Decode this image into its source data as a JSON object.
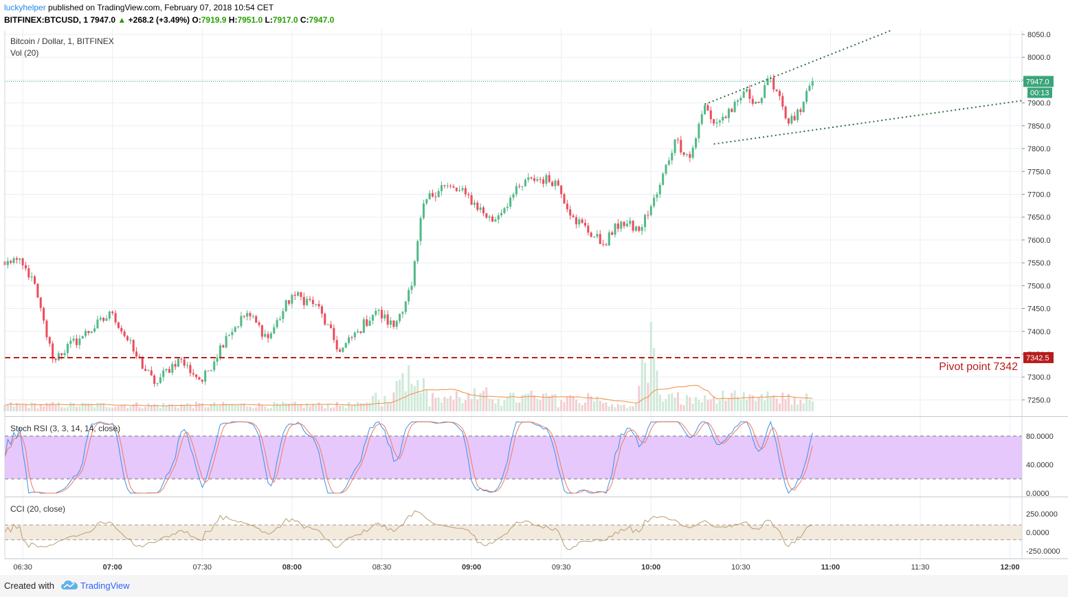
{
  "header": {
    "author": "luckyhelper",
    "published_text": "published on TradingView.com, February 07, 2018 10:54 CET",
    "symbol": "BITFINEX:BTCUSD, 1",
    "last": "7947.0",
    "change": "+268.2 (+3.49%)",
    "o_label": "O:",
    "o_value": "7919.9",
    "h_label": "H:",
    "h_value": "7951.0",
    "l_label": "L:",
    "l_value": "7917.0",
    "c_label": "C:",
    "c_value": "7947.0"
  },
  "footer": {
    "created_with": "Created with",
    "brand": "TradingView"
  },
  "colors": {
    "up": "#53b987",
    "down": "#eb4d5c",
    "grid": "#e9eef2",
    "pivot": "#b71c1c",
    "stoch_band": "#e6c8fc",
    "cci_band": "#f3eade",
    "stoch_k": "#3b8fe8",
    "stoch_d": "#f07a5a",
    "cci_line": "#b89c6e",
    "vol_ma": "#f08c3c"
  },
  "chart_data": [
    {
      "type": "candlestick",
      "title": "Bitcoin / Dollar, 1, BITFINEX",
      "subtitle": "Vol (20)",
      "x_ticks": [
        "06:30",
        "07:00",
        "07:30",
        "08:00",
        "08:30",
        "09:00",
        "09:30",
        "10:00",
        "10:30",
        "11:00",
        "11:30",
        "12:00"
      ],
      "y_ticks": [
        "8050.0",
        "8000.0",
        "7950.0",
        "7900.0",
        "7850.0",
        "7800.0",
        "7750.0",
        "7700.0",
        "7650.0",
        "7600.0",
        "7550.0",
        "7500.0",
        "7450.0",
        "7400.0",
        "7350.0",
        "7300.0",
        "7250.0"
      ],
      "ylim": [
        7215,
        8058
      ],
      "xlim_minutes_from_0624": [
        0,
        340
      ],
      "last_price_label": "7947.0",
      "countdown_label": "00:13",
      "pivot": {
        "value": 7342.5,
        "label": "7342.5",
        "annotation": "Pivot point 7342"
      },
      "key_closes": [
        {
          "time": "06:24",
          "close": 7545
        },
        {
          "time": "06:27",
          "close": 7560
        },
        {
          "time": "06:33",
          "close": 7520
        },
        {
          "time": "06:40",
          "close": 7340
        },
        {
          "time": "06:50",
          "close": 7390
        },
        {
          "time": "07:00",
          "close": 7440
        },
        {
          "time": "07:08",
          "close": 7345
        },
        {
          "time": "07:14",
          "close": 7285
        },
        {
          "time": "07:22",
          "close": 7340
        },
        {
          "time": "07:30",
          "close": 7290
        },
        {
          "time": "07:38",
          "close": 7390
        },
        {
          "time": "07:45",
          "close": 7440
        },
        {
          "time": "07:52",
          "close": 7385
        },
        {
          "time": "08:00",
          "close": 7480
        },
        {
          "time": "08:08",
          "close": 7460
        },
        {
          "time": "08:16",
          "close": 7355
        },
        {
          "time": "08:22",
          "close": 7400
        },
        {
          "time": "08:28",
          "close": 7445
        },
        {
          "time": "08:34",
          "close": 7410
        },
        {
          "time": "08:40",
          "close": 7500
        },
        {
          "time": "08:44",
          "close": 7680
        },
        {
          "time": "08:50",
          "close": 7720
        },
        {
          "time": "08:58",
          "close": 7700
        },
        {
          "time": "09:07",
          "close": 7640
        },
        {
          "time": "09:14",
          "close": 7700
        },
        {
          "time": "09:20",
          "close": 7735
        },
        {
          "time": "09:28",
          "close": 7730
        },
        {
          "time": "09:34",
          "close": 7650
        },
        {
          "time": "09:44",
          "close": 7590
        },
        {
          "time": "09:50",
          "close": 7640
        },
        {
          "time": "09:56",
          "close": 7620
        },
        {
          "time": "10:02",
          "close": 7700
        },
        {
          "time": "10:08",
          "close": 7820
        },
        {
          "time": "10:13",
          "close": 7780
        },
        {
          "time": "10:18",
          "close": 7895
        },
        {
          "time": "10:21",
          "close": 7855
        },
        {
          "time": "10:27",
          "close": 7880
        },
        {
          "time": "10:31",
          "close": 7925
        },
        {
          "time": "10:36",
          "close": 7900
        },
        {
          "time": "10:40",
          "close": 7955
        },
        {
          "time": "10:43",
          "close": 7915
        },
        {
          "time": "10:46",
          "close": 7855
        },
        {
          "time": "10:50",
          "close": 7880
        },
        {
          "time": "10:54",
          "close": 7947
        }
      ],
      "vol_peak_time": "10:00"
    },
    {
      "type": "line",
      "title": "Stoch RSI (3, 3, 14, 14, close)",
      "y_ticks": [
        "80.0000",
        "40.0000",
        "0.0000"
      ],
      "ylim": [
        -5,
        105
      ],
      "bands": [
        20,
        80
      ]
    },
    {
      "type": "line",
      "title": "CCI (20, close)",
      "y_ticks": [
        "250.0000",
        "0.0000",
        "-250.0000"
      ],
      "ylim": [
        -320,
        370
      ],
      "bands": [
        -100,
        100
      ]
    }
  ]
}
